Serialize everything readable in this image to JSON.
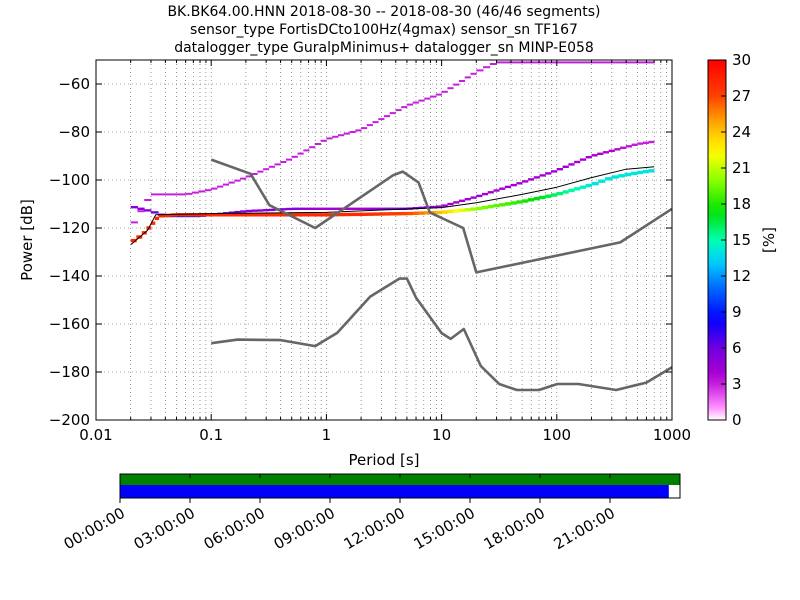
{
  "chart_data": {
    "type": "heatmap",
    "title_lines": [
      "BK.BK64.00.HNN   2018-08-30 -- 2018-08-30  (46/46 segments)",
      "sensor_type FortisDCto100Hz(4gmax) sensor_sn TF167",
      "datalogger_type GuralpMinimus+ datalogger_sn MINP-E058"
    ],
    "xlabel": "Period [s]",
    "ylabel": "Power [dB]",
    "xscale": "log",
    "xlim": [
      0.01,
      1000
    ],
    "ylim": [
      -200,
      -50
    ],
    "x_ticks": [
      "0.01",
      "0.1",
      "1",
      "10",
      "100",
      "1000"
    ],
    "y_ticks": [
      "−60",
      "−80",
      "−100",
      "−120",
      "−140",
      "−160",
      "−180",
      "−200"
    ],
    "y_tick_values": [
      -60,
      -80,
      -100,
      -120,
      -140,
      -160,
      -180,
      -200
    ],
    "colorbar": {
      "label": "[%]",
      "min": 0,
      "max": 30,
      "ticks": [
        "30",
        "27",
        "24",
        "21",
        "18",
        "15",
        "12",
        "9",
        "6",
        "3",
        "0"
      ],
      "tick_values": [
        30,
        27,
        24,
        21,
        18,
        15,
        12,
        9,
        6,
        3,
        0
      ]
    },
    "nlnm": {
      "name": "NLNM",
      "color": "#666666",
      "points": [
        [
          0.1,
          -168
        ],
        [
          0.17,
          -166.5
        ],
        [
          0.4,
          -166.7
        ],
        [
          0.8,
          -169.2
        ],
        [
          1.24,
          -163.7
        ],
        [
          2.4,
          -148.6
        ],
        [
          4.3,
          -141.1
        ],
        [
          5,
          -141.1
        ],
        [
          6,
          -149
        ],
        [
          10,
          -163.8
        ],
        [
          12,
          -166.2
        ],
        [
          15.6,
          -162.1
        ],
        [
          21.9,
          -177.5
        ],
        [
          31.6,
          -185
        ],
        [
          45,
          -187.5
        ],
        [
          70,
          -187.5
        ],
        [
          101,
          -185
        ],
        [
          154,
          -185
        ],
        [
          328,
          -187.5
        ],
        [
          600,
          -184.4
        ],
        [
          1000,
          -178
        ]
      ]
    },
    "nhnm": {
      "name": "NHNM",
      "color": "#666666",
      "points": [
        [
          0.1,
          -91.5
        ],
        [
          0.22,
          -97.4
        ],
        [
          0.32,
          -110.5
        ],
        [
          0.8,
          -120
        ],
        [
          3.8,
          -98
        ],
        [
          4.6,
          -96.5
        ],
        [
          6.3,
          -101
        ],
        [
          7.9,
          -113.5
        ],
        [
          15.4,
          -120
        ],
        [
          20,
          -138.5
        ],
        [
          354.8,
          -126
        ],
        [
          1000,
          -112
        ]
      ]
    },
    "ppsd_density": {
      "description_bins": "period (s), power (dB), percent",
      "core_band": [
        [
          0.02,
          -126,
          28
        ],
        [
          0.025,
          -123,
          28
        ],
        [
          0.03,
          -119,
          28
        ],
        [
          0.035,
          -115,
          28
        ],
        [
          0.05,
          -114.5,
          28
        ],
        [
          0.1,
          -114.5,
          28
        ],
        [
          0.2,
          -114.5,
          28
        ],
        [
          0.5,
          -114.5,
          28
        ],
        [
          1,
          -114.5,
          28
        ],
        [
          2,
          -114.3,
          28
        ],
        [
          5,
          -114,
          27
        ],
        [
          10,
          -113.5,
          24
        ],
        [
          20,
          -112,
          20
        ],
        [
          50,
          -109,
          18
        ],
        [
          100,
          -106,
          16
        ],
        [
          200,
          -102,
          14
        ],
        [
          300,
          -99,
          14
        ],
        [
          500,
          -97,
          14
        ],
        [
          700,
          -96,
          14
        ]
      ],
      "secondary_band": [
        [
          0.02,
          -111,
          5
        ],
        [
          0.03,
          -113,
          5
        ],
        [
          0.04,
          -115,
          8
        ],
        [
          0.08,
          -115,
          9
        ],
        [
          0.2,
          -113,
          5
        ],
        [
          0.5,
          -112,
          5
        ],
        [
          1,
          -112,
          4
        ],
        [
          2,
          -112,
          4
        ],
        [
          5,
          -112,
          6
        ],
        [
          10,
          -111,
          4
        ],
        [
          20,
          -107,
          4
        ],
        [
          50,
          -101,
          4
        ],
        [
          100,
          -96,
          4
        ],
        [
          200,
          -90,
          4
        ],
        [
          500,
          -85,
          3
        ],
        [
          700,
          -84,
          3
        ]
      ],
      "outlier_band": [
        [
          0.02,
          -120,
          3
        ],
        [
          0.03,
          -106,
          3
        ],
        [
          0.06,
          -106,
          3
        ],
        [
          0.1,
          -104,
          3
        ],
        [
          0.2,
          -99,
          3
        ],
        [
          0.5,
          -91,
          3
        ],
        [
          1,
          -83,
          3
        ],
        [
          2,
          -79,
          3
        ],
        [
          5,
          -69,
          3
        ],
        [
          10,
          -64,
          3
        ],
        [
          20,
          -55,
          3
        ],
        [
          30,
          -51,
          3
        ],
        [
          100,
          -51,
          3
        ],
        [
          700,
          -51,
          3
        ]
      ]
    },
    "mean_line": {
      "name": "mean",
      "color": "#000000",
      "points": [
        [
          0.02,
          -127
        ],
        [
          0.028,
          -121
        ],
        [
          0.033,
          -114.5
        ],
        [
          0.1,
          -114
        ],
        [
          1,
          -113.5
        ],
        [
          3,
          -112.5
        ],
        [
          10,
          -111.5
        ],
        [
          20,
          -109.5
        ],
        [
          50,
          -106
        ],
        [
          100,
          -103
        ],
        [
          200,
          -99
        ],
        [
          400,
          -95.5
        ],
        [
          700,
          -94.5
        ]
      ]
    },
    "grid": true,
    "colormap": "pqlx"
  },
  "timeline": {
    "labels": [
      "00:00:00",
      "03:00:00",
      "06:00:00",
      "09:00:00",
      "12:00:00",
      "15:00:00",
      "18:00:00",
      "21:00:00"
    ],
    "coverage_fraction": 0.98,
    "colors": {
      "top": "#008000",
      "bottom": "#0000ff"
    }
  }
}
